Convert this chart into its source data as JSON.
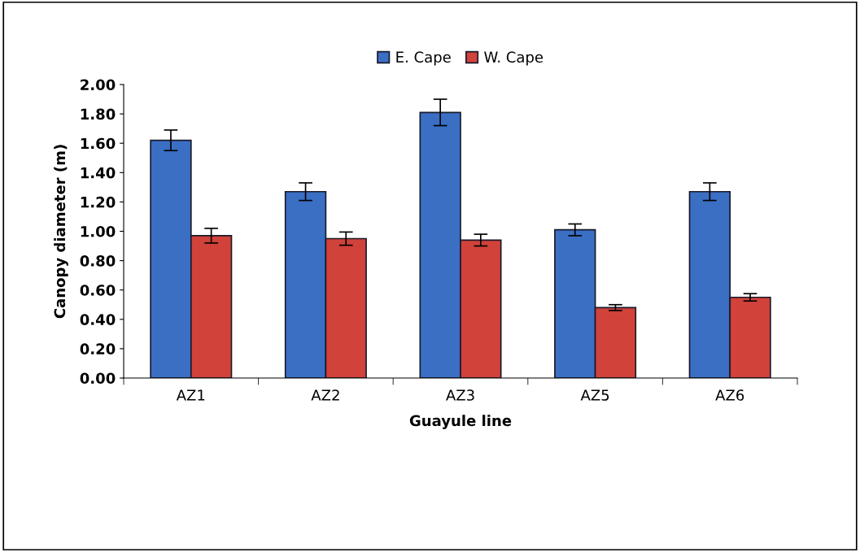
{
  "chart_data": {
    "type": "bar",
    "xlabel": "Guayule line",
    "ylabel": "Canopy diameter (m)",
    "categories": [
      "AZ1",
      "AZ2",
      "AZ3",
      "AZ5",
      "AZ6"
    ],
    "series": [
      {
        "name": "E. Cape",
        "color": "#3a6fc4",
        "values": [
          1.62,
          1.27,
          1.81,
          1.01,
          1.27
        ],
        "errors": [
          0.07,
          0.06,
          0.09,
          0.04,
          0.06
        ]
      },
      {
        "name": "W. Cape",
        "color": "#d0423a",
        "values": [
          0.97,
          0.95,
          0.94,
          0.48,
          0.55
        ],
        "errors": [
          0.05,
          0.045,
          0.04,
          0.02,
          0.025
        ]
      }
    ],
    "ylim": [
      0,
      2.0
    ],
    "yticks": [
      {
        "value": 0,
        "label": "0.00"
      },
      {
        "value": 0.2,
        "label": "0.20"
      },
      {
        "value": 0.4,
        "label": "0.40"
      },
      {
        "value": 0.6,
        "label": "0.60"
      },
      {
        "value": 0.8,
        "label": "0.80"
      },
      {
        "value": 1.0,
        "label": "1.00"
      },
      {
        "value": 1.2,
        "label": "1.20"
      },
      {
        "value": 1.4,
        "label": "1.40"
      },
      {
        "value": 1.6,
        "label": "1.60"
      },
      {
        "value": 1.8,
        "label": "1.80"
      },
      {
        "value": 2.0,
        "label": "2.00"
      }
    ],
    "legend": "top",
    "grid": false
  }
}
